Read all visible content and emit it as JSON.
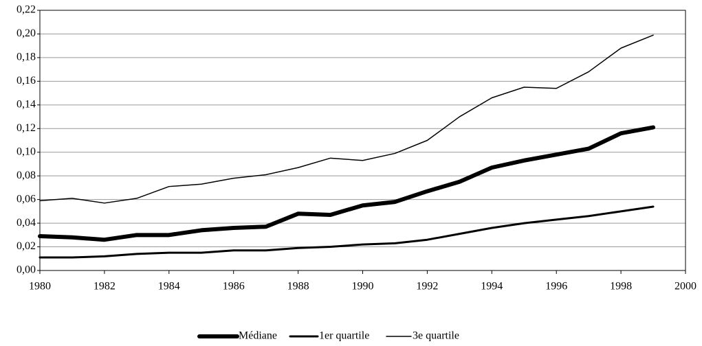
{
  "chart_data": {
    "type": "line",
    "x": [
      1980,
      1981,
      1982,
      1983,
      1984,
      1985,
      1986,
      1987,
      1988,
      1989,
      1990,
      1991,
      1992,
      1993,
      1994,
      1995,
      1996,
      1997,
      1998,
      1999
    ],
    "series": [
      {
        "name": "Médiane",
        "color": "#000000",
        "values": [
          0.029,
          0.028,
          0.026,
          0.03,
          0.03,
          0.034,
          0.036,
          0.037,
          0.048,
          0.047,
          0.055,
          0.058,
          0.067,
          0.075,
          0.087,
          0.093,
          0.098,
          0.103,
          0.116,
          0.121
        ]
      },
      {
        "name": "1er quartile",
        "color": "#000000",
        "values": [
          0.011,
          0.011,
          0.012,
          0.014,
          0.015,
          0.015,
          0.017,
          0.017,
          0.019,
          0.02,
          0.022,
          0.023,
          0.026,
          0.031,
          0.036,
          0.04,
          0.043,
          0.046,
          0.05,
          0.054
        ]
      },
      {
        "name": "3e quartile",
        "color": "#000000",
        "values": [
          0.059,
          0.061,
          0.057,
          0.061,
          0.071,
          0.073,
          0.078,
          0.081,
          0.087,
          0.095,
          0.093,
          0.099,
          0.11,
          0.13,
          0.146,
          0.155,
          0.154,
          0.168,
          0.188,
          0.199
        ]
      }
    ],
    "xlim": [
      1980,
      2000
    ],
    "xticks": [
      1980,
      1982,
      1984,
      1986,
      1988,
      1990,
      1992,
      1994,
      1996,
      1998,
      2000
    ],
    "ylim": [
      0,
      0.22
    ],
    "yticks": [
      {
        "value": 0,
        "label": "0,00"
      },
      {
        "value": 0.02,
        "label": "0,02"
      },
      {
        "value": 0.04,
        "label": "0,04"
      },
      {
        "value": 0.06,
        "label": "0,06"
      },
      {
        "value": 0.08,
        "label": "0,08"
      },
      {
        "value": 0.1,
        "label": "0,10"
      },
      {
        "value": 0.12,
        "label": "0,12"
      },
      {
        "value": 0.14,
        "label": "0,14"
      },
      {
        "value": 0.16,
        "label": "0,16"
      },
      {
        "value": 0.18,
        "label": "0,18"
      },
      {
        "value": 0.2,
        "label": "0,20"
      },
      {
        "value": 0.22,
        "label": "0,22"
      }
    ],
    "grid": true,
    "legend": "bottom"
  }
}
